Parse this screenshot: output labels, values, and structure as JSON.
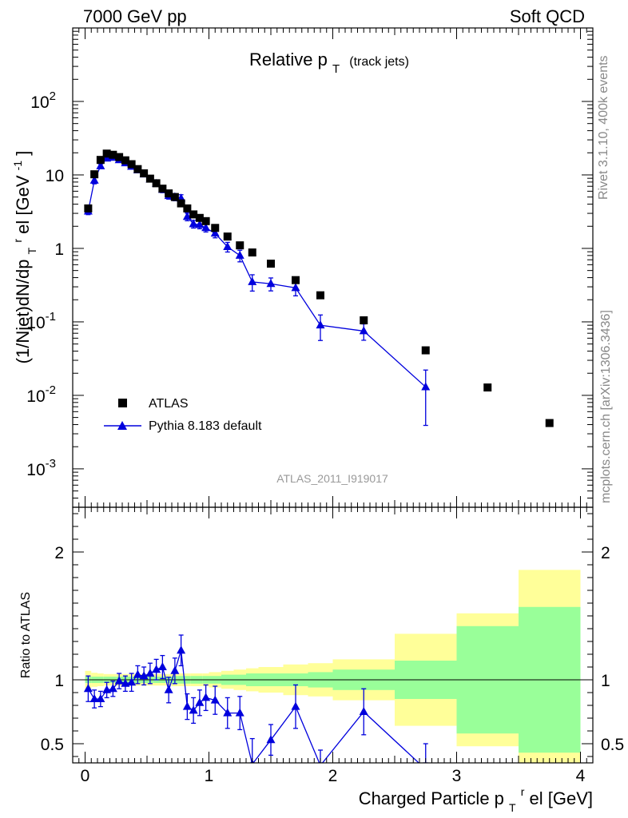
{
  "header": {
    "energy": "7000 GeV pp",
    "category": "Soft QCD"
  },
  "side_labels": {
    "rivet": "Rivet 3.1.10,  400k events",
    "source": "mcplots.cern.ch [arXiv:1306.3436]"
  },
  "watermark": "ATLAS_2011_I919017",
  "colors": {
    "mc": "#0000dd",
    "data": "#000000",
    "band_inner": "#99ff99",
    "band_outer": "#ffff99"
  },
  "chart_data": [
    {
      "type": "scatter",
      "panel": "main",
      "title": "Relative p_T (track jets)",
      "title_parts": {
        "main": "Relative p",
        "sub": "T",
        "extra": "(track jets)"
      },
      "ylabel": "(1/Njet)dN/dp_T^rel [GeV^-1]",
      "ylabel_parts": {
        "a": "(1/Njet)dN/dp",
        "b": "T",
        "c": "r",
        "d": "el [GeV",
        "e": "-1",
        "f": "]"
      },
      "xlim": [
        -0.1,
        4.1
      ],
      "ylim_log": [
        0.0003,
        1000
      ],
      "yscale": "log",
      "ytick_labels": [
        {
          "v": 0.001,
          "base": "10",
          "exp": "-3"
        },
        {
          "v": 0.01,
          "base": "10",
          "exp": "-2"
        },
        {
          "v": 0.1,
          "base": "10",
          "exp": "-1"
        },
        {
          "v": 1,
          "base": "1",
          "exp": ""
        },
        {
          "v": 10,
          "base": "10",
          "exp": ""
        },
        {
          "v": 100,
          "base": "10",
          "exp": "2"
        }
      ],
      "legend": [
        {
          "label": "ATLAS",
          "marker": "square"
        },
        {
          "label": "Pythia 8.183 default",
          "marker": "triangle"
        }
      ],
      "legend_position": "lower-left",
      "series": [
        {
          "name": "ATLAS",
          "x": [
            0.025,
            0.075,
            0.125,
            0.175,
            0.225,
            0.275,
            0.325,
            0.375,
            0.425,
            0.475,
            0.525,
            0.575,
            0.625,
            0.675,
            0.725,
            0.775,
            0.825,
            0.875,
            0.925,
            0.975,
            1.05,
            1.15,
            1.25,
            1.35,
            1.5,
            1.7,
            1.9,
            2.25,
            2.75,
            3.25,
            3.75
          ],
          "y": [
            3.5,
            10.2,
            16.0,
            19.5,
            18.8,
            17.5,
            15.8,
            14.0,
            12.0,
            10.5,
            8.9,
            7.7,
            6.5,
            5.6,
            5.0,
            4.1,
            3.5,
            2.9,
            2.6,
            2.35,
            1.9,
            1.45,
            1.1,
            0.88,
            0.62,
            0.37,
            0.23,
            0.105,
            0.041,
            0.0128,
            0.0042
          ]
        },
        {
          "name": "Pythia 8.183 default",
          "x": [
            0.025,
            0.075,
            0.125,
            0.175,
            0.225,
            0.275,
            0.325,
            0.375,
            0.425,
            0.475,
            0.525,
            0.575,
            0.625,
            0.675,
            0.725,
            0.775,
            0.825,
            0.875,
            0.925,
            0.975,
            1.05,
            1.15,
            1.25,
            1.35,
            1.5,
            1.7,
            1.9,
            2.25,
            2.75
          ],
          "y": [
            3.2,
            8.4,
            13.2,
            16.8,
            17.2,
            16.0,
            14.5,
            13.0,
            11.6,
            10.2,
            8.7,
            7.6,
            6.3,
            5.2,
            5.0,
            4.8,
            2.7,
            2.15,
            2.1,
            1.9,
            1.6,
            1.05,
            0.8,
            0.35,
            0.33,
            0.29,
            0.09,
            0.075,
            0.013
          ],
          "err_rel": [
            0.1,
            0.1,
            0.07,
            0.05,
            0.05,
            0.05,
            0.05,
            0.06,
            0.06,
            0.07,
            0.08,
            0.08,
            0.09,
            0.1,
            0.11,
            0.12,
            0.12,
            0.12,
            0.12,
            0.12,
            0.13,
            0.15,
            0.18,
            0.25,
            0.2,
            0.22,
            0.38,
            0.25,
            0.7
          ]
        }
      ]
    },
    {
      "type": "line",
      "panel": "ratio",
      "ylabel": "Ratio to ATLAS",
      "xlabel": "Charged Particle p_T^rel [GeV]",
      "xlabel_parts": {
        "a": "Charged Particle p",
        "b": "T",
        "c": "r",
        "d": "el [GeV]"
      },
      "xlim": [
        -0.1,
        4.1
      ],
      "ylim": [
        0.35,
        2.35
      ],
      "x_tick_labels": [
        "0",
        "1",
        "2",
        "3",
        "4"
      ],
      "y_tick_labels": [
        "0.5",
        "1",
        "2"
      ],
      "band_edges": [
        0,
        0.05,
        0.1,
        0.15,
        0.2,
        0.25,
        0.3,
        0.35,
        0.4,
        0.45,
        0.5,
        0.55,
        0.6,
        0.65,
        0.7,
        0.75,
        0.8,
        0.85,
        0.9,
        0.95,
        1.0,
        1.1,
        1.2,
        1.3,
        1.4,
        1.6,
        1.8,
        2.0,
        2.5,
        3.0,
        3.5,
        4.0
      ],
      "band_inner": [
        0.025,
        0.025,
        0.025,
        0.025,
        0.025,
        0.025,
        0.025,
        0.025,
        0.025,
        0.025,
        0.025,
        0.025,
        0.025,
        0.025,
        0.03,
        0.03,
        0.03,
        0.03,
        0.03,
        0.03,
        0.03,
        0.04,
        0.04,
        0.05,
        0.05,
        0.05,
        0.06,
        0.08,
        0.15,
        0.42,
        0.57
      ],
      "band_outer": [
        0.07,
        0.055,
        0.05,
        0.045,
        0.045,
        0.045,
        0.045,
        0.045,
        0.045,
        0.045,
        0.045,
        0.045,
        0.045,
        0.045,
        0.05,
        0.05,
        0.05,
        0.05,
        0.05,
        0.05,
        0.06,
        0.07,
        0.08,
        0.09,
        0.1,
        0.12,
        0.13,
        0.16,
        0.36,
        0.52,
        0.86
      ],
      "series": [
        {
          "name": "Pythia 8.183 default",
          "x": [
            0.025,
            0.075,
            0.125,
            0.175,
            0.225,
            0.275,
            0.325,
            0.375,
            0.425,
            0.475,
            0.525,
            0.575,
            0.625,
            0.675,
            0.725,
            0.775,
            0.825,
            0.875,
            0.925,
            0.975,
            1.05,
            1.15,
            1.25,
            1.35,
            1.5,
            1.7,
            1.9,
            2.25,
            2.75
          ],
          "y": [
            0.93,
            0.85,
            0.85,
            0.92,
            0.93,
            0.99,
            0.97,
            0.98,
            1.04,
            1.03,
            1.05,
            1.08,
            1.1,
            0.92,
            1.07,
            1.23,
            0.79,
            0.76,
            0.82,
            0.86,
            0.84,
            0.74,
            0.74,
            0.34,
            0.53,
            0.79,
            0.33,
            0.75,
            0.3
          ],
          "err": [
            0.1,
            0.07,
            0.06,
            0.06,
            0.06,
            0.06,
            0.06,
            0.07,
            0.07,
            0.07,
            0.08,
            0.08,
            0.09,
            0.1,
            0.1,
            0.12,
            0.1,
            0.1,
            0.1,
            0.1,
            0.11,
            0.12,
            0.13,
            0.2,
            0.12,
            0.17,
            0.12,
            0.18,
            0.2
          ]
        }
      ]
    }
  ]
}
